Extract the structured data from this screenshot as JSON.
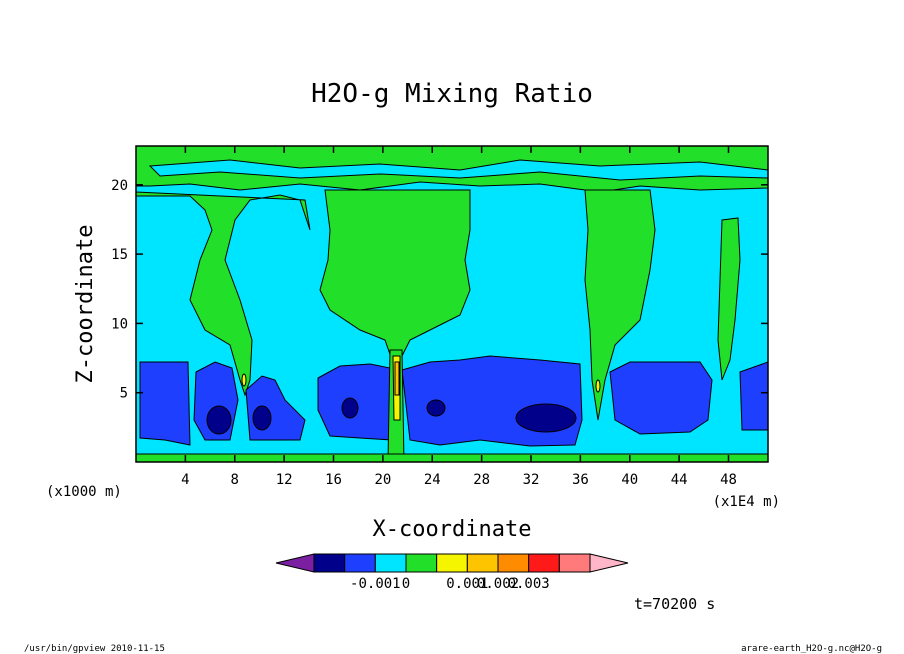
{
  "chart_data": {
    "type": "heatmap",
    "title": "H2O-g Mixing Ratio",
    "xlabel": "X-coordinate",
    "ylabel": "Z-coordinate",
    "x_unit_left": "(x1000 m)",
    "x_unit_right": "(x1E4 m)",
    "x_ticks": [
      "4",
      "8",
      "12",
      "16",
      "20",
      "24",
      "28",
      "32",
      "36",
      "40",
      "44",
      "48"
    ],
    "x_tick_values": [
      4,
      8,
      12,
      16,
      20,
      24,
      28,
      32,
      36,
      40,
      44,
      48
    ],
    "y_ticks": [
      "5",
      "10",
      "15",
      "20"
    ],
    "y_tick_values": [
      5,
      10,
      15,
      20
    ],
    "xlim": [
      0,
      51.2
    ],
    "ylim": [
      0,
      22.8
    ],
    "colorbar": {
      "colors": [
        "#7a1fa2",
        "#00008b",
        "#1f3fff",
        "#00e5ff",
        "#22e02a",
        "#f5f500",
        "#ffc400",
        "#ff8c00",
        "#ff1a1a",
        "#ff7a7a",
        "#ffb6c8"
      ],
      "labels": [
        "-0.001",
        "0",
        "0.001",
        "0.002",
        "0.003"
      ],
      "label_after_bin": [
        2,
        3,
        5,
        6,
        7
      ]
    },
    "time_label": "t=70200 s",
    "footer_left": "/usr/bin/gpview  2010-11-15",
    "footer_right": "arare-earth_H2O-g.nc@H2O-g"
  }
}
